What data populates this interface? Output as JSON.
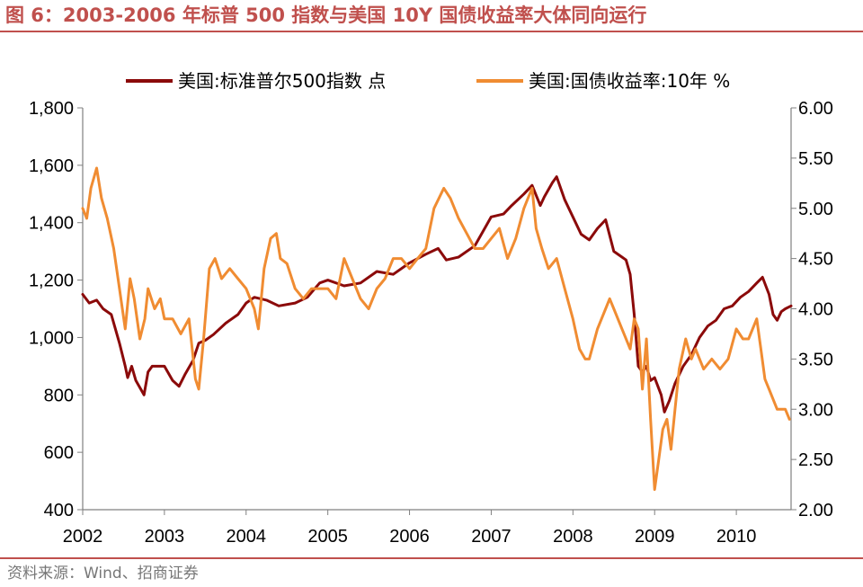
{
  "header": {
    "title": "图 6：2003-2006 年标普 500 指数与美国 10Y 国债收益率大体同向运行"
  },
  "footer": {
    "source": "资料来源：Wind、招商证券"
  },
  "chart_data": {
    "type": "line",
    "x_range": [
      2002.0,
      2010.67
    ],
    "x_ticks": [
      "2002",
      "2003",
      "2004",
      "2005",
      "2006",
      "2007",
      "2008",
      "2009",
      "2010"
    ],
    "y_left": {
      "ticks": [
        "1,800",
        "1,600",
        "1,400",
        "1,200",
        "1,000",
        "800",
        "600",
        "400"
      ],
      "range": [
        400,
        1800
      ]
    },
    "y_right": {
      "ticks": [
        "6.00",
        "5.50",
        "5.00",
        "4.50",
        "4.00",
        "3.50",
        "3.00",
        "2.50",
        "2.00"
      ],
      "range": [
        2.0,
        6.0
      ]
    },
    "legend_position": "top",
    "grid": false,
    "series": [
      {
        "name": "美国:标准普尔500指数 点",
        "axis": "left",
        "color": "#8b0a0a",
        "x": [
          2002.0,
          2002.08,
          2002.17,
          2002.25,
          2002.35,
          2002.45,
          2002.52,
          2002.55,
          2002.6,
          2002.65,
          2002.75,
          2002.8,
          2002.85,
          2002.95,
          2003.0,
          2003.1,
          2003.18,
          2003.25,
          2003.35,
          2003.42,
          2003.5,
          2003.6,
          2003.75,
          2003.9,
          2004.0,
          2004.1,
          2004.25,
          2004.4,
          2004.6,
          2004.75,
          2004.9,
          2005.0,
          2005.2,
          2005.4,
          2005.6,
          2005.8,
          2006.0,
          2006.2,
          2006.35,
          2006.45,
          2006.6,
          2006.8,
          2007.0,
          2007.15,
          2007.25,
          2007.4,
          2007.5,
          2007.6,
          2007.65,
          2007.75,
          2007.8,
          2007.9,
          2008.0,
          2008.1,
          2008.2,
          2008.3,
          2008.4,
          2008.5,
          2008.6,
          2008.65,
          2008.7,
          2008.75,
          2008.8,
          2008.85,
          2008.9,
          2008.95,
          2009.0,
          2009.08,
          2009.12,
          2009.18,
          2009.25,
          2009.35,
          2009.45,
          2009.55,
          2009.65,
          2009.75,
          2009.85,
          2009.95,
          2010.05,
          2010.15,
          2010.25,
          2010.32,
          2010.4,
          2010.45,
          2010.5,
          2010.55,
          2010.6,
          2010.67
        ],
        "y": [
          1150,
          1120,
          1130,
          1100,
          1080,
          980,
          900,
          860,
          900,
          850,
          800,
          880,
          900,
          900,
          900,
          850,
          830,
          870,
          920,
          980,
          990,
          1010,
          1050,
          1080,
          1120,
          1140,
          1130,
          1110,
          1120,
          1140,
          1190,
          1200,
          1180,
          1190,
          1230,
          1220,
          1260,
          1290,
          1310,
          1270,
          1280,
          1320,
          1420,
          1430,
          1460,
          1500,
          1530,
          1460,
          1490,
          1540,
          1560,
          1480,
          1420,
          1360,
          1340,
          1380,
          1410,
          1300,
          1280,
          1270,
          1220,
          1080,
          900,
          880,
          900,
          850,
          860,
          800,
          740,
          780,
          840,
          900,
          940,
          1000,
          1040,
          1060,
          1100,
          1110,
          1140,
          1160,
          1190,
          1210,
          1150,
          1080,
          1060,
          1090,
          1100,
          1110
        ]
      },
      {
        "name": "美国:国债收益率:10年 %",
        "axis": "right",
        "color": "#f08c32",
        "x": [
          2002.0,
          2002.05,
          2002.1,
          2002.17,
          2002.23,
          2002.3,
          2002.38,
          2002.45,
          2002.52,
          2002.58,
          2002.63,
          2002.7,
          2002.76,
          2002.8,
          2002.88,
          2002.95,
          2003.0,
          2003.1,
          2003.2,
          2003.3,
          2003.38,
          2003.42,
          2003.48,
          2003.55,
          2003.62,
          2003.7,
          2003.8,
          2003.9,
          2004.0,
          2004.1,
          2004.15,
          2004.22,
          2004.3,
          2004.37,
          2004.42,
          2004.5,
          2004.6,
          2004.7,
          2004.8,
          2004.9,
          2005.0,
          2005.1,
          2005.2,
          2005.3,
          2005.4,
          2005.5,
          2005.6,
          2005.7,
          2005.8,
          2005.9,
          2006.0,
          2006.1,
          2006.2,
          2006.3,
          2006.42,
          2006.5,
          2006.6,
          2006.7,
          2006.8,
          2006.9,
          2007.0,
          2007.1,
          2007.2,
          2007.3,
          2007.4,
          2007.45,
          2007.5,
          2007.55,
          2007.62,
          2007.7,
          2007.8,
          2007.9,
          2008.0,
          2008.08,
          2008.15,
          2008.2,
          2008.3,
          2008.4,
          2008.45,
          2008.5,
          2008.6,
          2008.7,
          2008.75,
          2008.8,
          2008.85,
          2008.9,
          2008.95,
          2009.0,
          2009.05,
          2009.1,
          2009.15,
          2009.2,
          2009.25,
          2009.3,
          2009.38,
          2009.45,
          2009.5,
          2009.6,
          2009.7,
          2009.8,
          2009.9,
          2010.0,
          2010.08,
          2010.15,
          2010.25,
          2010.3,
          2010.35,
          2010.4,
          2010.5,
          2010.6,
          2010.65
        ],
        "y": [
          5.0,
          4.9,
          5.2,
          5.4,
          5.1,
          4.9,
          4.6,
          4.2,
          3.8,
          4.3,
          4.1,
          3.7,
          3.9,
          4.2,
          4.0,
          4.1,
          3.9,
          3.9,
          3.75,
          3.9,
          3.3,
          3.2,
          3.7,
          4.4,
          4.5,
          4.3,
          4.4,
          4.3,
          4.2,
          4.0,
          3.8,
          4.4,
          4.7,
          4.75,
          4.5,
          4.45,
          4.2,
          4.1,
          4.2,
          4.2,
          4.2,
          4.1,
          4.5,
          4.3,
          4.1,
          4.0,
          4.2,
          4.3,
          4.5,
          4.5,
          4.4,
          4.5,
          4.6,
          5.0,
          5.2,
          5.1,
          4.9,
          4.75,
          4.6,
          4.6,
          4.7,
          4.8,
          4.5,
          4.7,
          5.0,
          5.1,
          5.2,
          4.8,
          4.6,
          4.4,
          4.5,
          4.2,
          3.9,
          3.6,
          3.5,
          3.5,
          3.8,
          4.0,
          4.1,
          4.0,
          3.8,
          3.6,
          3.9,
          3.8,
          3.2,
          3.7,
          2.9,
          2.2,
          2.5,
          2.8,
          2.9,
          2.6,
          3.0,
          3.4,
          3.7,
          3.5,
          3.6,
          3.4,
          3.5,
          3.4,
          3.5,
          3.8,
          3.7,
          3.7,
          3.9,
          3.6,
          3.3,
          3.2,
          3.0,
          3.0,
          2.9
        ]
      }
    ]
  }
}
